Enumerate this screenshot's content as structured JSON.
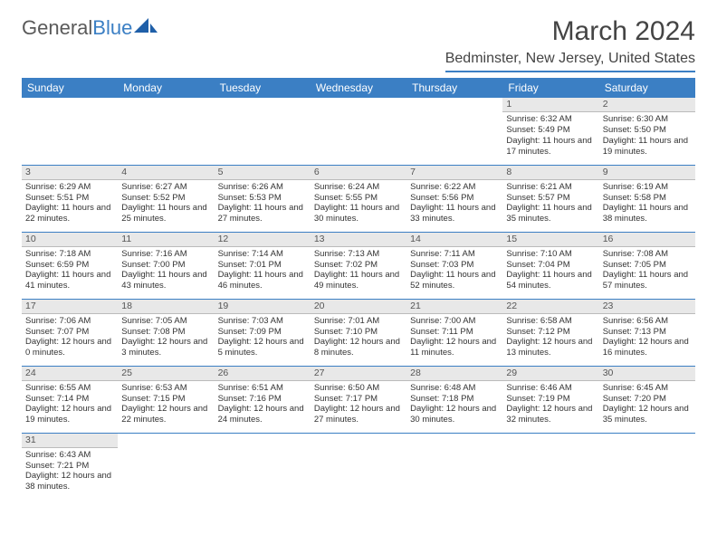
{
  "logo": {
    "text1": "General",
    "text2": "Blue"
  },
  "title": "March 2024",
  "location": "Bedminster, New Jersey, United States",
  "colors": {
    "header_bg": "#3b7fc4",
    "header_text": "#ffffff",
    "daynum_bg": "#e8e8e8",
    "text": "#333333",
    "logo_gray": "#5a5a5a",
    "logo_blue": "#3b7fc4"
  },
  "weekdays": [
    "Sunday",
    "Monday",
    "Tuesday",
    "Wednesday",
    "Thursday",
    "Friday",
    "Saturday"
  ],
  "weeks": [
    [
      {
        "day": "",
        "lines": []
      },
      {
        "day": "",
        "lines": []
      },
      {
        "day": "",
        "lines": []
      },
      {
        "day": "",
        "lines": []
      },
      {
        "day": "",
        "lines": []
      },
      {
        "day": "1",
        "lines": [
          "Sunrise: 6:32 AM",
          "Sunset: 5:49 PM",
          "Daylight: 11 hours and 17 minutes."
        ]
      },
      {
        "day": "2",
        "lines": [
          "Sunrise: 6:30 AM",
          "Sunset: 5:50 PM",
          "Daylight: 11 hours and 19 minutes."
        ]
      }
    ],
    [
      {
        "day": "3",
        "lines": [
          "Sunrise: 6:29 AM",
          "Sunset: 5:51 PM",
          "Daylight: 11 hours and 22 minutes."
        ]
      },
      {
        "day": "4",
        "lines": [
          "Sunrise: 6:27 AM",
          "Sunset: 5:52 PM",
          "Daylight: 11 hours and 25 minutes."
        ]
      },
      {
        "day": "5",
        "lines": [
          "Sunrise: 6:26 AM",
          "Sunset: 5:53 PM",
          "Daylight: 11 hours and 27 minutes."
        ]
      },
      {
        "day": "6",
        "lines": [
          "Sunrise: 6:24 AM",
          "Sunset: 5:55 PM",
          "Daylight: 11 hours and 30 minutes."
        ]
      },
      {
        "day": "7",
        "lines": [
          "Sunrise: 6:22 AM",
          "Sunset: 5:56 PM",
          "Daylight: 11 hours and 33 minutes."
        ]
      },
      {
        "day": "8",
        "lines": [
          "Sunrise: 6:21 AM",
          "Sunset: 5:57 PM",
          "Daylight: 11 hours and 35 minutes."
        ]
      },
      {
        "day": "9",
        "lines": [
          "Sunrise: 6:19 AM",
          "Sunset: 5:58 PM",
          "Daylight: 11 hours and 38 minutes."
        ]
      }
    ],
    [
      {
        "day": "10",
        "lines": [
          "Sunrise: 7:18 AM",
          "Sunset: 6:59 PM",
          "Daylight: 11 hours and 41 minutes."
        ]
      },
      {
        "day": "11",
        "lines": [
          "Sunrise: 7:16 AM",
          "Sunset: 7:00 PM",
          "Daylight: 11 hours and 43 minutes."
        ]
      },
      {
        "day": "12",
        "lines": [
          "Sunrise: 7:14 AM",
          "Sunset: 7:01 PM",
          "Daylight: 11 hours and 46 minutes."
        ]
      },
      {
        "day": "13",
        "lines": [
          "Sunrise: 7:13 AM",
          "Sunset: 7:02 PM",
          "Daylight: 11 hours and 49 minutes."
        ]
      },
      {
        "day": "14",
        "lines": [
          "Sunrise: 7:11 AM",
          "Sunset: 7:03 PM",
          "Daylight: 11 hours and 52 minutes."
        ]
      },
      {
        "day": "15",
        "lines": [
          "Sunrise: 7:10 AM",
          "Sunset: 7:04 PM",
          "Daylight: 11 hours and 54 minutes."
        ]
      },
      {
        "day": "16",
        "lines": [
          "Sunrise: 7:08 AM",
          "Sunset: 7:05 PM",
          "Daylight: 11 hours and 57 minutes."
        ]
      }
    ],
    [
      {
        "day": "17",
        "lines": [
          "Sunrise: 7:06 AM",
          "Sunset: 7:07 PM",
          "Daylight: 12 hours and 0 minutes."
        ]
      },
      {
        "day": "18",
        "lines": [
          "Sunrise: 7:05 AM",
          "Sunset: 7:08 PM",
          "Daylight: 12 hours and 3 minutes."
        ]
      },
      {
        "day": "19",
        "lines": [
          "Sunrise: 7:03 AM",
          "Sunset: 7:09 PM",
          "Daylight: 12 hours and 5 minutes."
        ]
      },
      {
        "day": "20",
        "lines": [
          "Sunrise: 7:01 AM",
          "Sunset: 7:10 PM",
          "Daylight: 12 hours and 8 minutes."
        ]
      },
      {
        "day": "21",
        "lines": [
          "Sunrise: 7:00 AM",
          "Sunset: 7:11 PM",
          "Daylight: 12 hours and 11 minutes."
        ]
      },
      {
        "day": "22",
        "lines": [
          "Sunrise: 6:58 AM",
          "Sunset: 7:12 PM",
          "Daylight: 12 hours and 13 minutes."
        ]
      },
      {
        "day": "23",
        "lines": [
          "Sunrise: 6:56 AM",
          "Sunset: 7:13 PM",
          "Daylight: 12 hours and 16 minutes."
        ]
      }
    ],
    [
      {
        "day": "24",
        "lines": [
          "Sunrise: 6:55 AM",
          "Sunset: 7:14 PM",
          "Daylight: 12 hours and 19 minutes."
        ]
      },
      {
        "day": "25",
        "lines": [
          "Sunrise: 6:53 AM",
          "Sunset: 7:15 PM",
          "Daylight: 12 hours and 22 minutes."
        ]
      },
      {
        "day": "26",
        "lines": [
          "Sunrise: 6:51 AM",
          "Sunset: 7:16 PM",
          "Daylight: 12 hours and 24 minutes."
        ]
      },
      {
        "day": "27",
        "lines": [
          "Sunrise: 6:50 AM",
          "Sunset: 7:17 PM",
          "Daylight: 12 hours and 27 minutes."
        ]
      },
      {
        "day": "28",
        "lines": [
          "Sunrise: 6:48 AM",
          "Sunset: 7:18 PM",
          "Daylight: 12 hours and 30 minutes."
        ]
      },
      {
        "day": "29",
        "lines": [
          "Sunrise: 6:46 AM",
          "Sunset: 7:19 PM",
          "Daylight: 12 hours and 32 minutes."
        ]
      },
      {
        "day": "30",
        "lines": [
          "Sunrise: 6:45 AM",
          "Sunset: 7:20 PM",
          "Daylight: 12 hours and 35 minutes."
        ]
      }
    ],
    [
      {
        "day": "31",
        "lines": [
          "Sunrise: 6:43 AM",
          "Sunset: 7:21 PM",
          "Daylight: 12 hours and 38 minutes."
        ]
      },
      {
        "day": "",
        "lines": []
      },
      {
        "day": "",
        "lines": []
      },
      {
        "day": "",
        "lines": []
      },
      {
        "day": "",
        "lines": []
      },
      {
        "day": "",
        "lines": []
      },
      {
        "day": "",
        "lines": []
      }
    ]
  ]
}
